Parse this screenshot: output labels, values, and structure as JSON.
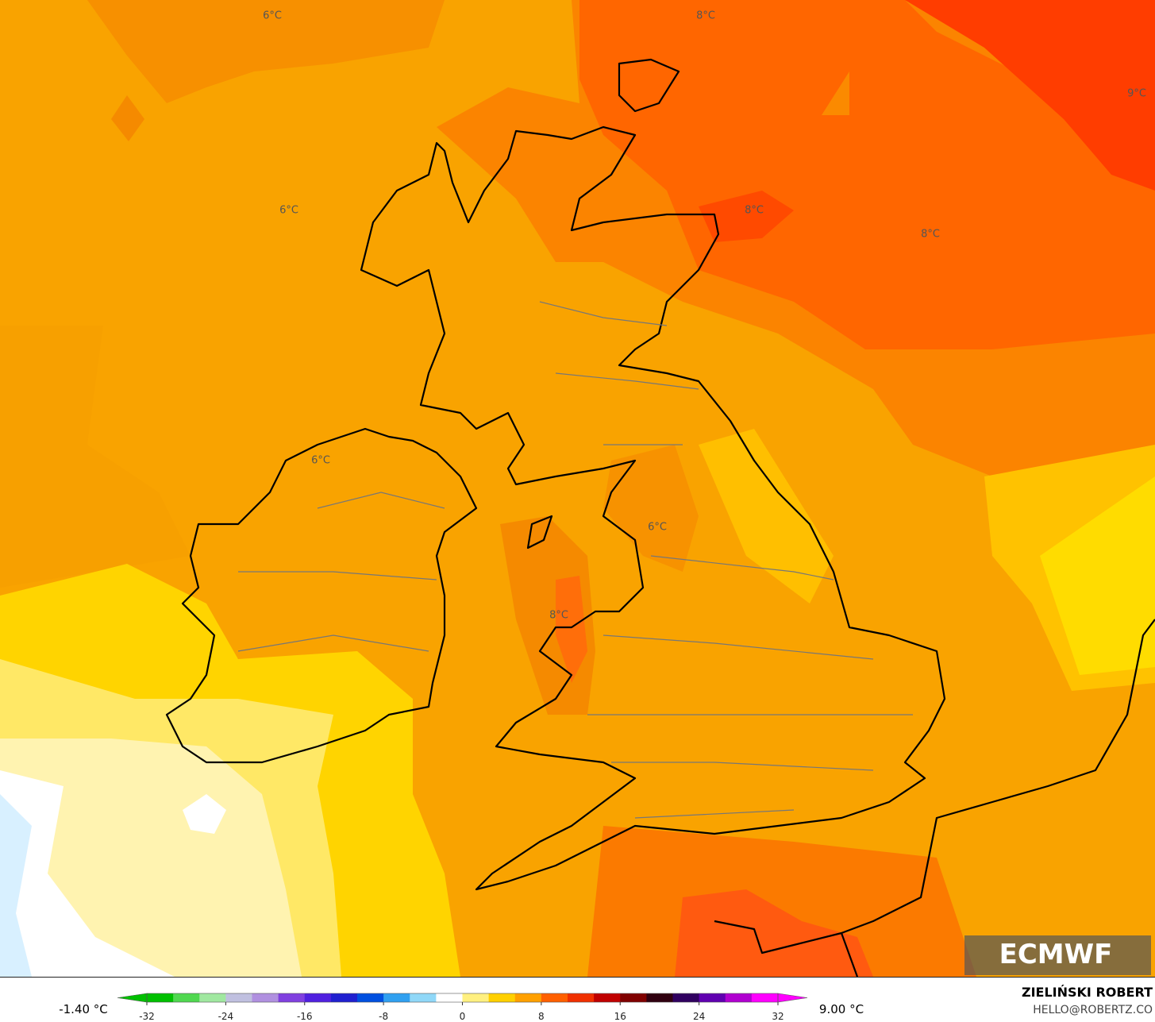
{
  "map": {
    "contour_labels": [
      "6°C",
      "8°C",
      "9°C",
      "6°C",
      "8°C",
      "8°C",
      "6°C",
      "6°C",
      "8°C"
    ],
    "logo": "ECMWF",
    "author": "ZIELIŃSKI ROBERT",
    "contact": "HELLO@ROBERTZ.CO"
  },
  "colorbar": {
    "min_label": "-1.40 °C",
    "max_label": "9.00 °C",
    "ticks": [
      -32,
      -24,
      -16,
      -8,
      0,
      8,
      16,
      24,
      32
    ]
  }
}
